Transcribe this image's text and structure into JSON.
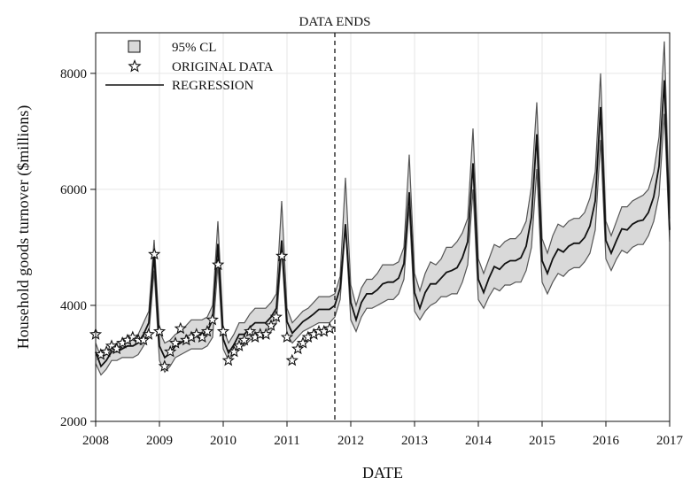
{
  "chart_data": {
    "type": "line",
    "xlabel": "DATE",
    "ylabel": "Household goods turnover ($millions)",
    "xlim": [
      2008,
      2017
    ],
    "ylim": [
      2000,
      8700
    ],
    "xticks": [
      2008,
      2009,
      2010,
      2011,
      2012,
      2013,
      2014,
      2015,
      2016,
      2017
    ],
    "xtick_labels": [
      "2008",
      "2009",
      "2010",
      "2011",
      "2012",
      "2013",
      "2014",
      "2015",
      "2016",
      "2017"
    ],
    "yticks": [
      2000,
      4000,
      6000,
      8000
    ],
    "ytick_labels": [
      "2000",
      "4000",
      "6000",
      "8000"
    ],
    "grid": true,
    "legend_position": "top-left",
    "legend": {
      "band_label": "95% CL",
      "data_label": "ORIGINAL DATA",
      "line_label": "REGRESSION"
    },
    "annotation": {
      "text": "DATA ENDS",
      "x": 2011.75
    },
    "colors": {
      "band_fill": "#d9d9d9",
      "band_edge": "#555555",
      "line": "#111111",
      "grid": "#e6e6e6"
    },
    "band_start": 2008.0,
    "band_step_years": 0.0833333,
    "band_upper": [
      3350,
      3100,
      3150,
      3300,
      3350,
      3400,
      3450,
      3450,
      3500,
      3700,
      3900,
      5130,
      3550,
      3350,
      3400,
      3500,
      3550,
      3650,
      3750,
      3750,
      3750,
      3800,
      4000,
      5450,
      3600,
      3350,
      3500,
      3700,
      3700,
      3850,
      3950,
      3950,
      3950,
      4050,
      4200,
      5800,
      3950,
      3700,
      3800,
      3900,
      3950,
      4050,
      4150,
      4150,
      4150,
      4200,
      4500,
      6200,
      4350,
      4000,
      4300,
      4450,
      4450,
      4550,
      4700,
      4700,
      4700,
      4750,
      5000,
      6600,
      4550,
      4250,
      4550,
      4750,
      4700,
      4800,
      5000,
      5000,
      5100,
      5250,
      5500,
      7050,
      4800,
      4550,
      4800,
      5050,
      5000,
      5100,
      5150,
      5150,
      5250,
      5450,
      6050,
      7500,
      5150,
      4900,
      5200,
      5400,
      5350,
      5450,
      5500,
      5500,
      5600,
      5850,
      6300,
      8000,
      5450,
      5200,
      5450,
      5700,
      5700,
      5800,
      5850,
      5900,
      6000,
      6300,
      6900,
      8550,
      5500
    ],
    "band_lower": [
      3000,
      2800,
      2900,
      3050,
      3050,
      3100,
      3100,
      3100,
      3150,
      3300,
      3500,
      4600,
      3050,
      2850,
      2950,
      3100,
      3150,
      3200,
      3250,
      3250,
      3250,
      3300,
      3450,
      4700,
      3250,
      3050,
      3150,
      3300,
      3300,
      3400,
      3450,
      3450,
      3450,
      3550,
      3700,
      4950,
      3500,
      3350,
      3450,
      3550,
      3600,
      3650,
      3700,
      3700,
      3700,
      3800,
      4100,
      5350,
      3750,
      3550,
      3800,
      3950,
      3950,
      4000,
      4050,
      4100,
      4100,
      4200,
      4450,
      5700,
      3900,
      3750,
      3900,
      4000,
      4050,
      4150,
      4150,
      4200,
      4200,
      4400,
      4700,
      6000,
      4100,
      3950,
      4150,
      4300,
      4250,
      4350,
      4350,
      4400,
      4400,
      4600,
      5000,
      6350,
      4400,
      4200,
      4400,
      4550,
      4500,
      4600,
      4650,
      4650,
      4750,
      4900,
      5300,
      6850,
      4800,
      4600,
      4800,
      4950,
      4900,
      5000,
      5050,
      5050,
      5200,
      5450,
      5900,
      7300,
      5100
    ],
    "regression": [
      3200,
      2950,
      3050,
      3200,
      3200,
      3250,
      3300,
      3300,
      3350,
      3500,
      3700,
      4880,
      3300,
      3100,
      3180,
      3300,
      3350,
      3420,
      3500,
      3500,
      3500,
      3550,
      3750,
      5060,
      3420,
      3180,
      3320,
      3500,
      3500,
      3620,
      3700,
      3700,
      3700,
      3800,
      3950,
      5120,
      3720,
      3520,
      3620,
      3720,
      3780,
      3850,
      3930,
      3930,
      3930,
      4000,
      4300,
      5400,
      4050,
      3750,
      4050,
      4200,
      4200,
      4270,
      4370,
      4400,
      4400,
      4470,
      4720,
      5950,
      4220,
      3950,
      4220,
      4370,
      4370,
      4470,
      4570,
      4600,
      4650,
      4820,
      5100,
      6450,
      4450,
      4220,
      4470,
      4670,
      4620,
      4720,
      4770,
      4770,
      4820,
      5020,
      5520,
      6950,
      4770,
      4550,
      4800,
      4970,
      4920,
      5020,
      5070,
      5070,
      5170,
      5370,
      5800,
      7420,
      5120,
      4900,
      5120,
      5320,
      5300,
      5400,
      5450,
      5470,
      5600,
      5870,
      6400,
      7880,
      5300
    ],
    "original_data": [
      [
        2008.0,
        3500
      ],
      [
        2008.08,
        3150
      ],
      [
        2008.17,
        3200
      ],
      [
        2008.25,
        3300
      ],
      [
        2008.33,
        3250
      ],
      [
        2008.42,
        3350
      ],
      [
        2008.5,
        3400
      ],
      [
        2008.58,
        3450
      ],
      [
        2008.67,
        3400
      ],
      [
        2008.75,
        3400
      ],
      [
        2008.83,
        3500
      ],
      [
        2008.92,
        4880
      ],
      [
        2009.0,
        3550
      ],
      [
        2009.08,
        2950
      ],
      [
        2009.17,
        3200
      ],
      [
        2009.25,
        3350
      ],
      [
        2009.33,
        3600
      ],
      [
        2009.42,
        3400
      ],
      [
        2009.5,
        3450
      ],
      [
        2009.58,
        3500
      ],
      [
        2009.67,
        3450
      ],
      [
        2009.75,
        3550
      ],
      [
        2009.83,
        3750
      ],
      [
        2009.92,
        4700
      ],
      [
        2010.0,
        3550
      ],
      [
        2010.08,
        3050
      ],
      [
        2010.17,
        3200
      ],
      [
        2010.25,
        3300
      ],
      [
        2010.33,
        3400
      ],
      [
        2010.42,
        3550
      ],
      [
        2010.5,
        3450
      ],
      [
        2010.58,
        3500
      ],
      [
        2010.67,
        3500
      ],
      [
        2010.75,
        3650
      ],
      [
        2010.83,
        3800
      ],
      [
        2010.92,
        4850
      ],
      [
        2011.0,
        3450
      ],
      [
        2011.08,
        3050
      ],
      [
        2011.17,
        3250
      ],
      [
        2011.25,
        3350
      ],
      [
        2011.33,
        3450
      ],
      [
        2011.42,
        3500
      ],
      [
        2011.5,
        3550
      ],
      [
        2011.58,
        3550
      ],
      [
        2011.67,
        3600
      ]
    ]
  }
}
